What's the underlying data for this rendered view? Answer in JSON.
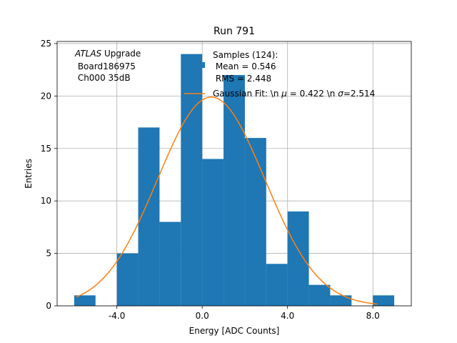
{
  "chart_data": {
    "type": "bar",
    "title": "Run 791",
    "xlabel": "Energy [ADC Counts]",
    "ylabel": "Entries",
    "xlim": [
      -6.8,
      9.8
    ],
    "ylim": [
      0,
      25.2
    ],
    "grid": true,
    "xticks": [
      -4.0,
      0.0,
      4.0,
      8.0
    ],
    "xtick_labels": [
      "-4.0",
      "0.0",
      "4.0",
      "8.0"
    ],
    "yticks": [
      0,
      5,
      10,
      15,
      20,
      25
    ],
    "ytick_labels": [
      "0",
      "5",
      "10",
      "15",
      "20",
      "25"
    ],
    "bin_edges": [
      -6,
      -5,
      -4,
      -3,
      -2,
      -1,
      0,
      1,
      2,
      3,
      4,
      5,
      6,
      7,
      8,
      9
    ],
    "values": [
      1,
      0,
      5,
      17,
      8,
      24,
      14,
      22,
      16,
      4,
      9,
      2,
      1,
      0,
      1
    ],
    "bar_color": "#1f77b4",
    "fit": {
      "label": "Gaussian Fit: \\n $\\mu$ = 0.422 \\n $\\sigma$=2.514",
      "label_prefix": "Gaussian Fit: \\n ",
      "mu_symbol": "μ",
      "label_mid": " = 0.422 \\n ",
      "sigma_symbol": "σ",
      "label_suffix": "=2.514",
      "mu": 0.422,
      "sigma": 2.514,
      "amplitude": 19.9,
      "range": [
        -5.9,
        8.2
      ],
      "color": "#ff7f0e"
    },
    "legend": {
      "position": "top-right",
      "samples_line1": "Samples (124):",
      "samples_line2": " Mean = 0.546",
      "samples_line3": " RMS = 2.448"
    },
    "annotation": {
      "italic": "ATLAS",
      "rest": " Upgrade",
      "line2": " Board186975",
      "line3": " Ch000 35dB"
    }
  }
}
